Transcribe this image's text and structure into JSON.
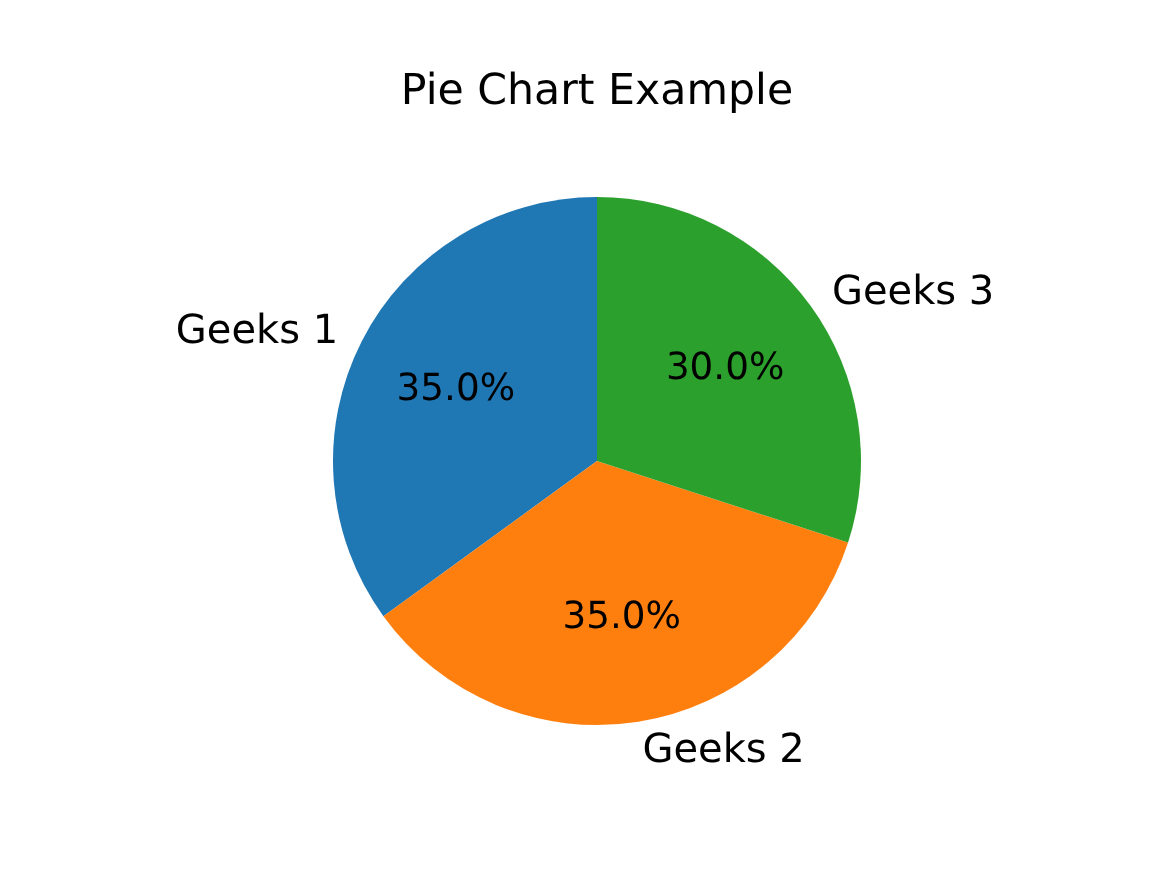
{
  "chart_data": {
    "type": "pie",
    "title": "Pie Chart Example",
    "categories": [
      "Geeks 1",
      "Geeks 2",
      "Geeks 3"
    ],
    "values": [
      35,
      35,
      30
    ],
    "colors": [
      "#1f77b4",
      "#ff7f0e",
      "#2ca02c"
    ],
    "value_labels": [
      "35.0%",
      "35.0%",
      "30.0%"
    ]
  }
}
